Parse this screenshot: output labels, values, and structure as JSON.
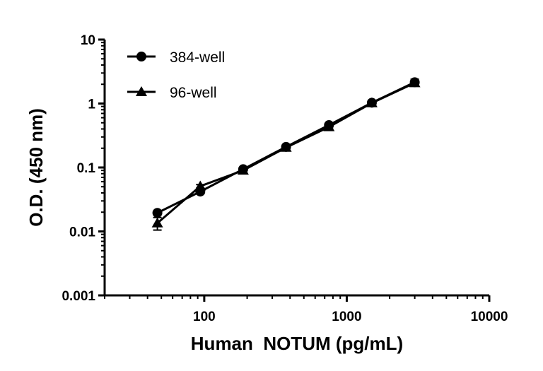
{
  "chart_data": {
    "type": "line",
    "xlabel": "Human  NOTUM (pg/mL)",
    "ylabel": "O.D. (450 nm)",
    "xscale": "log",
    "yscale": "log",
    "xlim": [
      20,
      10000
    ],
    "ylim": [
      0.001,
      10
    ],
    "x_tick_labels": [
      "100",
      "1000",
      "10000"
    ],
    "y_tick_labels": [
      "0.001",
      "0.01",
      "0.1",
      "1",
      "10"
    ],
    "grid": false,
    "legend_position": "top-left",
    "x": [
      46.9,
      93.8,
      187.5,
      375,
      750,
      1500,
      3000
    ],
    "series": [
      {
        "name": "384-well",
        "marker": "circle",
        "values": [
          0.0195,
          0.042,
          0.094,
          0.21,
          0.46,
          1.03,
          2.15
        ],
        "error": [
          0.001,
          0.002,
          0.004,
          0.008,
          0.015,
          0.03,
          0.25
        ]
      },
      {
        "name": "96-well",
        "marker": "triangle",
        "values": [
          0.0135,
          0.051,
          0.09,
          0.205,
          0.43,
          1.02,
          2.1
        ],
        "error": [
          0.003,
          0.003,
          0.004,
          0.008,
          0.015,
          0.03,
          0.15
        ]
      }
    ],
    "color": "#000000"
  }
}
